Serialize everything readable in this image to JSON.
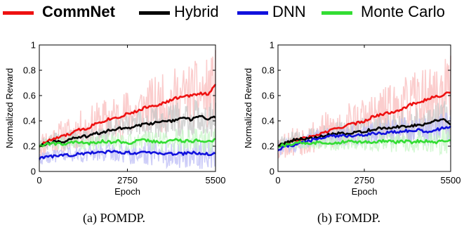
{
  "legend": [
    {
      "label": "CommNet",
      "color": "#ee1111",
      "bold": true
    },
    {
      "label": "Hybrid",
      "color": "#000000",
      "bold": false
    },
    {
      "label": "DNN",
      "color": "#1111dd",
      "bold": false
    },
    {
      "label": "Monte Carlo",
      "color": "#33dd33",
      "bold": false
    }
  ],
  "captions": [
    "(a)  POMDP.",
    "(b)  FOMDP."
  ],
  "chart_data": [
    {
      "type": "line",
      "xlabel": "Epoch",
      "ylabel": "Normalized Reward",
      "xlim": [
        0,
        5500
      ],
      "ylim": [
        0,
        1
      ],
      "xticks": [
        0,
        2750,
        5500
      ],
      "yticks": [
        0,
        0.2,
        0.4,
        0.6,
        0.8,
        1
      ],
      "ytick_labels": [
        "0",
        "0.2",
        "0.4",
        "0.6",
        "0.8",
        "1"
      ],
      "x": [
        0,
        250,
        500,
        750,
        1000,
        1250,
        1500,
        1750,
        2000,
        2250,
        2500,
        2750,
        3000,
        3250,
        3500,
        3750,
        4000,
        4250,
        4500,
        4750,
        5000,
        5250,
        5500
      ],
      "series": [
        {
          "name": "CommNet",
          "color": "#ee1111",
          "values": [
            0.2,
            0.24,
            0.26,
            0.28,
            0.3,
            0.33,
            0.34,
            0.38,
            0.4,
            0.42,
            0.43,
            0.46,
            0.47,
            0.5,
            0.52,
            0.53,
            0.55,
            0.58,
            0.59,
            0.6,
            0.62,
            0.61,
            0.68
          ]
        },
        {
          "name": "Hybrid",
          "color": "#000000",
          "values": [
            0.21,
            0.22,
            0.24,
            0.23,
            0.26,
            0.27,
            0.28,
            0.3,
            0.31,
            0.33,
            0.34,
            0.34,
            0.36,
            0.37,
            0.38,
            0.39,
            0.39,
            0.41,
            0.42,
            0.41,
            0.44,
            0.42,
            0.43
          ]
        },
        {
          "name": "DNN",
          "color": "#1111dd",
          "values": [
            0.1,
            0.12,
            0.12,
            0.13,
            0.13,
            0.14,
            0.14,
            0.15,
            0.15,
            0.16,
            0.15,
            0.15,
            0.14,
            0.15,
            0.15,
            0.15,
            0.14,
            0.14,
            0.14,
            0.15,
            0.14,
            0.14,
            0.14
          ]
        },
        {
          "name": "Monte Carlo",
          "color": "#33dd33",
          "values": [
            0.2,
            0.22,
            0.22,
            0.22,
            0.23,
            0.23,
            0.22,
            0.23,
            0.24,
            0.23,
            0.24,
            0.22,
            0.24,
            0.25,
            0.24,
            0.23,
            0.24,
            0.25,
            0.24,
            0.24,
            0.25,
            0.23,
            0.25
          ]
        }
      ]
    },
    {
      "type": "line",
      "xlabel": "Epoch",
      "ylabel": "Normalized Reward",
      "xlim": [
        0,
        5500
      ],
      "ylim": [
        0,
        1
      ],
      "xticks": [
        0,
        2750,
        5500
      ],
      "yticks": [
        0,
        0.2,
        0.4,
        0.6,
        0.8,
        1
      ],
      "ytick_labels": [
        "0",
        "0.2",
        "0.4",
        "0.6",
        "0.8",
        "1"
      ],
      "x": [
        0,
        250,
        500,
        750,
        1000,
        1250,
        1500,
        1750,
        2000,
        2250,
        2500,
        2750,
        3000,
        3250,
        3500,
        3750,
        4000,
        4250,
        4500,
        4750,
        5000,
        5250,
        5500
      ],
      "series": [
        {
          "name": "CommNet",
          "color": "#ee1111",
          "values": [
            0.2,
            0.22,
            0.24,
            0.26,
            0.27,
            0.29,
            0.31,
            0.33,
            0.35,
            0.37,
            0.38,
            0.4,
            0.43,
            0.45,
            0.46,
            0.48,
            0.5,
            0.53,
            0.55,
            0.57,
            0.59,
            0.6,
            0.63
          ]
        },
        {
          "name": "Hybrid",
          "color": "#000000",
          "values": [
            0.2,
            0.23,
            0.25,
            0.26,
            0.26,
            0.27,
            0.28,
            0.3,
            0.3,
            0.29,
            0.31,
            0.32,
            0.33,
            0.34,
            0.34,
            0.35,
            0.36,
            0.36,
            0.37,
            0.38,
            0.4,
            0.42,
            0.37
          ]
        },
        {
          "name": "DNN",
          "color": "#1111dd",
          "values": [
            0.17,
            0.2,
            0.21,
            0.23,
            0.24,
            0.26,
            0.27,
            0.28,
            0.28,
            0.28,
            0.29,
            0.29,
            0.3,
            0.3,
            0.31,
            0.31,
            0.32,
            0.32,
            0.33,
            0.31,
            0.33,
            0.34,
            0.35
          ]
        },
        {
          "name": "Monte Carlo",
          "color": "#33dd33",
          "values": [
            0.2,
            0.21,
            0.22,
            0.23,
            0.22,
            0.23,
            0.23,
            0.22,
            0.23,
            0.24,
            0.23,
            0.24,
            0.23,
            0.24,
            0.24,
            0.23,
            0.24,
            0.23,
            0.24,
            0.24,
            0.23,
            0.24,
            0.25
          ]
        }
      ]
    }
  ]
}
